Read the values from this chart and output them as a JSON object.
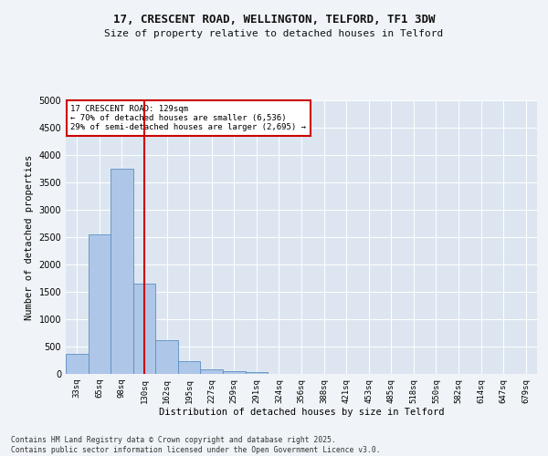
{
  "title_line1": "17, CRESCENT ROAD, WELLINGTON, TELFORD, TF1 3DW",
  "title_line2": "Size of property relative to detached houses in Telford",
  "xlabel": "Distribution of detached houses by size in Telford",
  "ylabel": "Number of detached properties",
  "bar_labels": [
    "33sq",
    "65sq",
    "98sq",
    "130sq",
    "162sq",
    "195sq",
    "227sq",
    "259sq",
    "291sq",
    "324sq",
    "356sq",
    "388sq",
    "421sq",
    "453sq",
    "485sq",
    "518sq",
    "550sq",
    "582sq",
    "614sq",
    "647sq",
    "679sq"
  ],
  "bar_values": [
    375,
    2550,
    3750,
    1650,
    625,
    230,
    90,
    45,
    35,
    0,
    0,
    0,
    0,
    0,
    0,
    0,
    0,
    0,
    0,
    0,
    0
  ],
  "bar_color": "#aec6e8",
  "bar_edge_color": "#5a8fc2",
  "vline_x": 3,
  "vline_color": "#cc0000",
  "annotation_title": "17 CRESCENT ROAD: 129sqm",
  "annotation_line2": "← 70% of detached houses are smaller (6,536)",
  "annotation_line3": "29% of semi-detached houses are larger (2,695) →",
  "annotation_box_color": "#cc0000",
  "ylim": [
    0,
    5000
  ],
  "yticks": [
    0,
    500,
    1000,
    1500,
    2000,
    2500,
    3000,
    3500,
    4000,
    4500,
    5000
  ],
  "fig_bg_color": "#f0f4f8",
  "ax_bg_color": "#dde6f0",
  "grid_color": "#ffffff",
  "footer_line1": "Contains HM Land Registry data © Crown copyright and database right 2025.",
  "footer_line2": "Contains public sector information licensed under the Open Government Licence v3.0."
}
